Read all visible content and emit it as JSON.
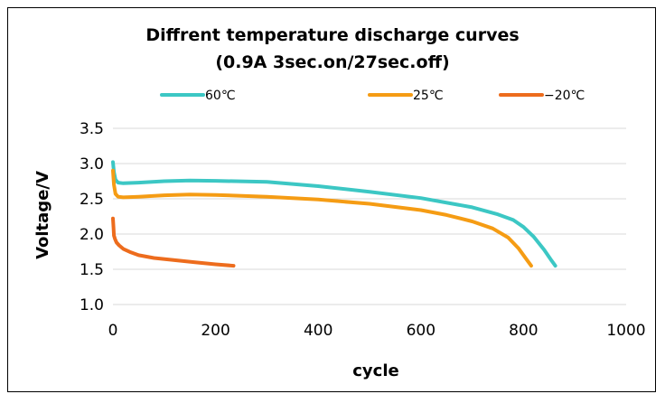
{
  "chart_data": {
    "type": "line",
    "title": "Diffrent temperature discharge curves",
    "subtitle": "(0.9A 3sec.on/27sec.off)",
    "xlabel": "cycle",
    "ylabel": "Voltage/V",
    "xlim": [
      0,
      1000
    ],
    "ylim": [
      1.0,
      3.5
    ],
    "xticks": [
      "0",
      "200",
      "400",
      "600",
      "800",
      "1000"
    ],
    "yticks": [
      "1.0",
      "1.5",
      "2.0",
      "2.5",
      "3.0",
      "3.5"
    ],
    "grid": "horizontal",
    "legend": "top",
    "series": [
      {
        "name": "60℃",
        "color": "#3cc7c4",
        "x": [
          0,
          2,
          5,
          10,
          20,
          50,
          100,
          150,
          200,
          300,
          400,
          500,
          600,
          700,
          750,
          780,
          800,
          820,
          840,
          855,
          862
        ],
        "y": [
          3.02,
          2.88,
          2.77,
          2.73,
          2.72,
          2.73,
          2.75,
          2.76,
          2.755,
          2.74,
          2.68,
          2.6,
          2.51,
          2.38,
          2.28,
          2.2,
          2.1,
          1.96,
          1.78,
          1.62,
          1.55
        ]
      },
      {
        "name": "25℃",
        "color": "#f59c14",
        "x": [
          0,
          2,
          5,
          10,
          20,
          50,
          100,
          150,
          200,
          300,
          400,
          500,
          600,
          650,
          700,
          740,
          770,
          790,
          805,
          815
        ],
        "y": [
          2.9,
          2.7,
          2.57,
          2.53,
          2.52,
          2.53,
          2.55,
          2.56,
          2.555,
          2.53,
          2.49,
          2.43,
          2.34,
          2.27,
          2.18,
          2.08,
          1.95,
          1.8,
          1.65,
          1.55
        ]
      },
      {
        "name": "-20℃",
        "color": "#ed6c1d",
        "x": [
          0,
          1,
          2,
          4,
          7,
          12,
          20,
          35,
          50,
          80,
          120,
          160,
          200,
          235
        ],
        "y": [
          2.22,
          2.1,
          1.98,
          1.93,
          1.88,
          1.84,
          1.79,
          1.74,
          1.7,
          1.66,
          1.63,
          1.6,
          1.57,
          1.55
        ]
      }
    ],
    "legend_labels": [
      "60℃",
      "25℃",
      "−20℃"
    ]
  }
}
